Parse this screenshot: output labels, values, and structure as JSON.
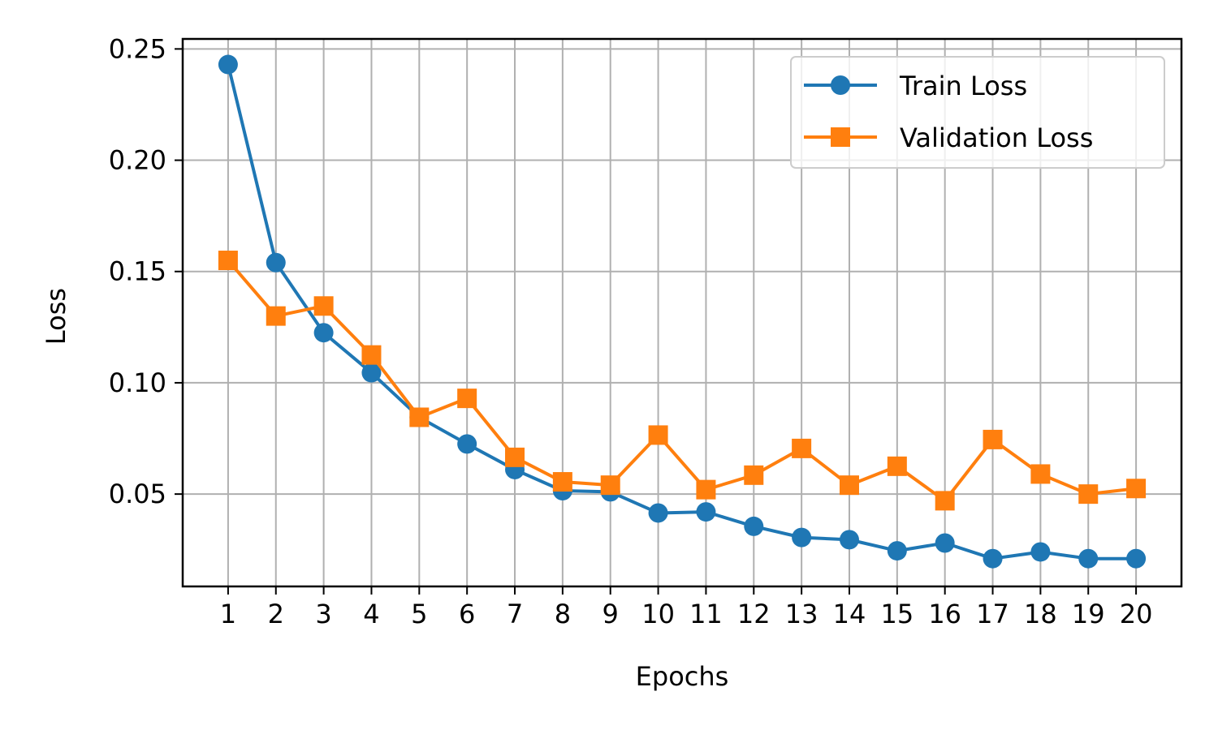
{
  "chart_data": {
    "type": "line",
    "title": "",
    "xlabel": "Epochs",
    "ylabel": "Loss",
    "x": [
      1,
      2,
      3,
      4,
      5,
      6,
      7,
      8,
      9,
      10,
      11,
      12,
      13,
      14,
      15,
      16,
      17,
      18,
      19,
      20
    ],
    "xticks": [
      "1",
      "2",
      "3",
      "4",
      "5",
      "6",
      "7",
      "8",
      "9",
      "10",
      "11",
      "12",
      "13",
      "14",
      "15",
      "16",
      "17",
      "18",
      "19",
      "20"
    ],
    "yticks": [
      0.05,
      0.1,
      0.15,
      0.2,
      0.25
    ],
    "ytick_labels": [
      "0.05",
      "0.10",
      "0.15",
      "0.20",
      "0.25"
    ],
    "xlim": [
      0.05,
      20.95
    ],
    "ylim": [
      0.0085,
      0.2545
    ],
    "grid": true,
    "legend_position": "top-right",
    "series": [
      {
        "name": "Train Loss",
        "color": "#1f77b4",
        "marker": "circle",
        "values": [
          0.243,
          0.154,
          0.1225,
          0.1045,
          0.0845,
          0.0725,
          0.061,
          0.0515,
          0.051,
          0.0415,
          0.042,
          0.0355,
          0.0305,
          0.0295,
          0.0245,
          0.028,
          0.021,
          0.024,
          0.021,
          0.021
        ]
      },
      {
        "name": "Validation Loss",
        "color": "#ff7f0e",
        "marker": "square",
        "values": [
          0.155,
          0.13,
          0.1345,
          0.1125,
          0.0845,
          0.093,
          0.0665,
          0.0555,
          0.054,
          0.0765,
          0.052,
          0.0585,
          0.0705,
          0.054,
          0.0625,
          0.047,
          0.0745,
          0.059,
          0.05,
          0.0525
        ]
      }
    ]
  }
}
